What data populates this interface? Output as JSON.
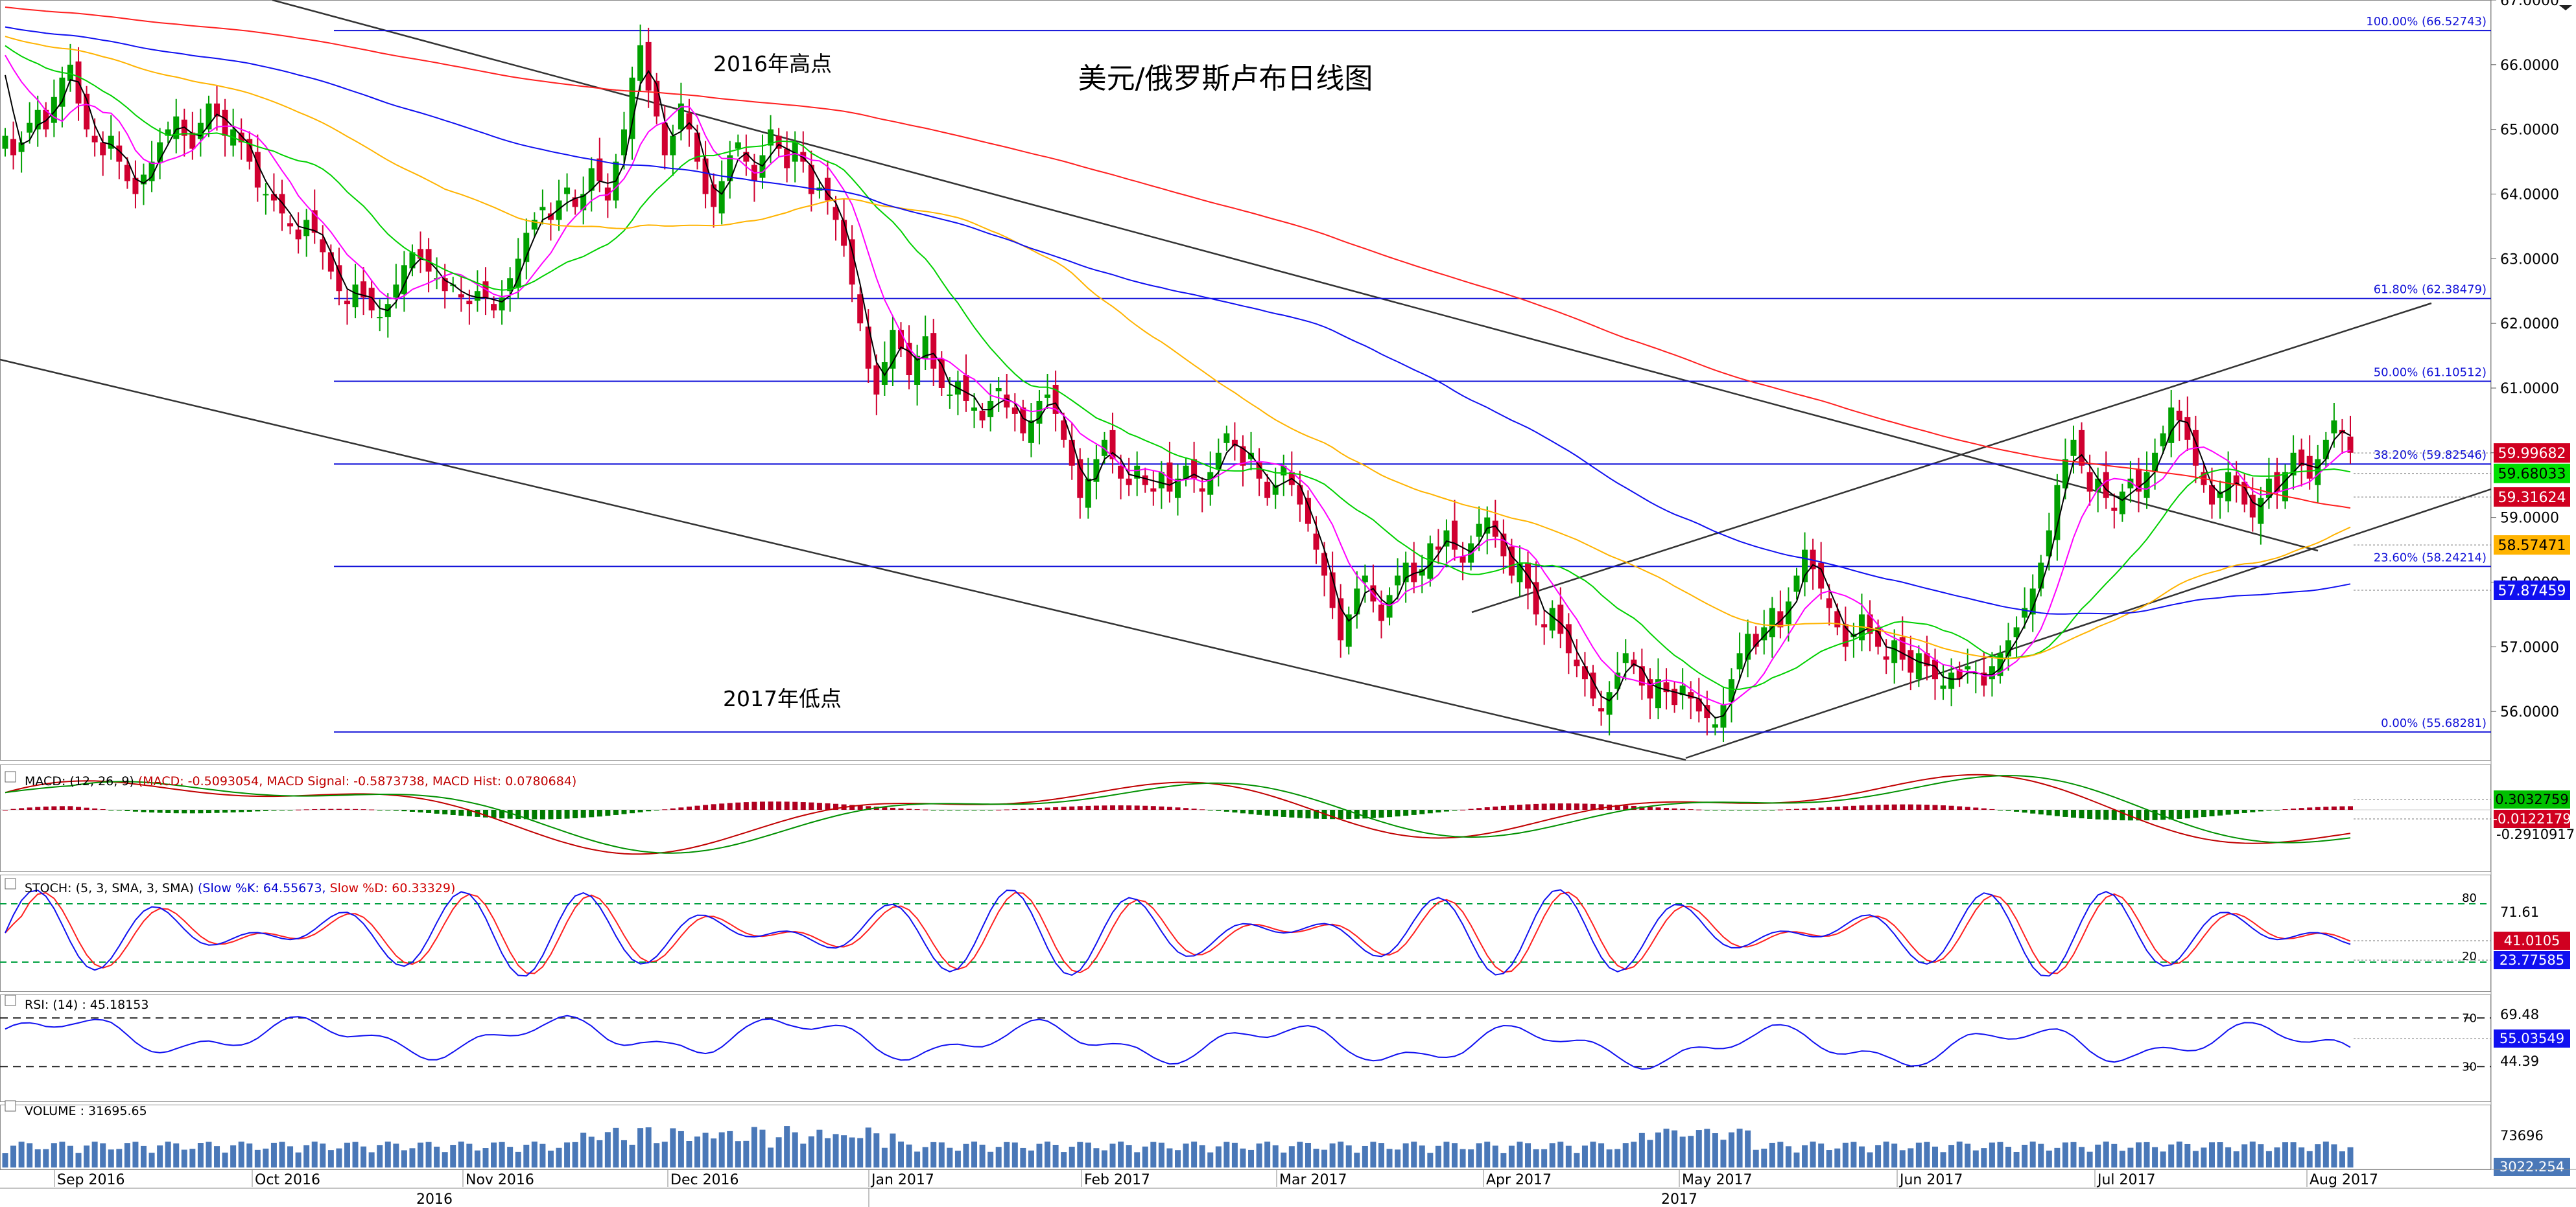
{
  "chart_data": {
    "type": "candlestick",
    "title": "美元/俄罗斯卢布日线图",
    "annotations": {
      "high_2016": "2016年高点",
      "low_2017": "2017年低点"
    },
    "price_axis": {
      "range": [
        55.2,
        67.0
      ],
      "ticks": [
        "67.0000",
        "66.0000",
        "65.0000",
        "64.0000",
        "63.0000",
        "62.0000",
        "61.0000",
        "60.0000",
        "59.0000",
        "58.0000",
        "57.0000",
        "56.0000"
      ]
    },
    "price_labels": [
      {
        "text": "59.99682",
        "color": "#d00020",
        "text_color": "#ffffff",
        "value": 59.99682
      },
      {
        "text": "59.68033",
        "color": "#00e000",
        "text_color": "#000000",
        "value": 59.68033
      },
      {
        "text": "59.31624",
        "color": "#d00020",
        "text_color": "#ffffff",
        "value": 59.31624
      },
      {
        "text": "58.57471",
        "color": "#ffb300",
        "text_color": "#000000",
        "value": 58.57471
      },
      {
        "text": "57.87459",
        "color": "#1010f0",
        "text_color": "#ffffff",
        "value": 57.87459
      }
    ],
    "fibonacci": [
      {
        "label": "100.00% (66.52743)",
        "value": 66.52743
      },
      {
        "label": "61.80% (62.38479)",
        "value": 62.38479
      },
      {
        "label": "50.00% (61.10512)",
        "value": 61.10512
      },
      {
        "label": "38.20% (59.82546)",
        "value": 59.82546
      },
      {
        "label": "23.60% (58.24214)",
        "value": 58.24214
      },
      {
        "label": "0.00% (55.68281)",
        "value": 55.68281
      }
    ],
    "months": [
      "Sep 2016",
      "Oct 2016",
      "Nov 2016",
      "Dec 2016",
      "Jan 2017",
      "Feb 2017",
      "Mar 2017",
      "Apr 2017",
      "May 2017",
      "Jun 2017",
      "Jul 2017",
      "Aug 2017"
    ],
    "years": [
      "2016",
      "2017"
    ],
    "closes": [
      64.9,
      64.6,
      64.8,
      65.1,
      65.3,
      65.0,
      65.5,
      65.8,
      66.0,
      65.4,
      65.0,
      64.8,
      64.6,
      64.9,
      64.5,
      64.2,
      64.0,
      64.3,
      64.5,
      64.8,
      65.0,
      65.2,
      64.9,
      64.7,
      65.1,
      65.4,
      65.2,
      64.9,
      65.0,
      64.8,
      64.5,
      64.1,
      64.0,
      63.9,
      63.7,
      63.5,
      63.3,
      63.6,
      63.4,
      63.1,
      62.8,
      62.5,
      62.3,
      62.6,
      62.4,
      62.2,
      62.1,
      62.3,
      62.6,
      62.9,
      63.1,
      63.0,
      62.8,
      62.7,
      62.5,
      62.6,
      62.4,
      62.3,
      62.5,
      62.4,
      62.2,
      62.4,
      62.7,
      63.0,
      63.4,
      63.6,
      63.8,
      63.6,
      63.9,
      64.1,
      63.8,
      64.0,
      64.4,
      64.2,
      63.9,
      64.5,
      65.0,
      65.8,
      66.3,
      65.6,
      65.2,
      64.6,
      64.9,
      65.4,
      65.0,
      64.5,
      64.0,
      63.8,
      64.2,
      64.6,
      64.8,
      64.5,
      64.2,
      64.6,
      65.0,
      64.7,
      64.4,
      64.8,
      64.5,
      64.0,
      64.1,
      63.9,
      63.6,
      63.2,
      62.6,
      62.0,
      61.3,
      60.9,
      61.4,
      61.9,
      61.6,
      61.2,
      61.5,
      61.8,
      61.3,
      61.0,
      60.9,
      61.1,
      60.8,
      60.7,
      60.5,
      60.8,
      61.0,
      60.7,
      60.6,
      60.3,
      60.5,
      60.8,
      60.9,
      60.6,
      60.2,
      59.8,
      59.3,
      59.6,
      59.9,
      60.2,
      59.9,
      59.6,
      59.5,
      59.8,
      59.5,
      59.4,
      59.7,
      59.4,
      59.6,
      59.8,
      59.6,
      59.4,
      59.7,
      60.0,
      60.3,
      60.1,
      59.8,
      60.0,
      59.6,
      59.3,
      59.5,
      59.8,
      59.5,
      59.2,
      58.9,
      58.5,
      58.1,
      57.6,
      57.1,
      57.5,
      57.9,
      58.1,
      57.7,
      57.4,
      57.8,
      58.1,
      58.3,
      58.0,
      58.2,
      58.6,
      58.5,
      58.8,
      58.5,
      58.3,
      58.6,
      58.9,
      59.0,
      58.7,
      58.4,
      58.1,
      58.3,
      57.9,
      57.5,
      57.3,
      57.6,
      57.2,
      56.9,
      56.7,
      56.5,
      56.2,
      56.0,
      56.3,
      56.6,
      56.9,
      56.7,
      56.4,
      56.2,
      56.5,
      56.3,
      56.1,
      56.4,
      56.2,
      56.0,
      55.9,
      55.8,
      56.1,
      56.5,
      56.9,
      57.2,
      57.0,
      57.3,
      57.6,
      57.3,
      57.7,
      58.1,
      58.5,
      58.2,
      57.9,
      57.6,
      57.3,
      57.0,
      57.2,
      57.5,
      57.2,
      57.0,
      56.8,
      57.1,
      56.8,
      56.6,
      56.9,
      56.7,
      56.5,
      56.4,
      56.6,
      56.5,
      56.7,
      56.6,
      56.4,
      56.7,
      56.9,
      57.1,
      57.3,
      57.6,
      57.9,
      58.3,
      58.8,
      59.5,
      59.9,
      60.2,
      59.8,
      59.4,
      59.6,
      59.3,
      59.1,
      59.4,
      59.6,
      59.4,
      59.7,
      60.0,
      60.3,
      60.7,
      60.5,
      60.2,
      59.8,
      59.5,
      59.2,
      59.4,
      59.7,
      59.5,
      59.2,
      59.0,
      59.3,
      59.6,
      59.4,
      59.7,
      60.0,
      59.8,
      59.6,
      59.9,
      60.2,
      60.5,
      60.3,
      60.0
    ],
    "indicators": {
      "macd": {
        "header": "MACD: (12, 26, 9) ",
        "values": "(MACD: -0.5093054, MACD Signal: -0.5873738, MACD Hist: 0.0780684)",
        "axis": [
          "0.3032759",
          "-0.0122179",
          "-0.2910917"
        ]
      },
      "stoch": {
        "header": "STOCH: (5, 3, SMA, 3, SMA) ",
        "k": "(Slow %K: 64.55673, ",
        "d": "Slow %D: 60.33329)",
        "levels": [
          "80",
          "20"
        ],
        "axis": [
          "71.61"
        ],
        "labels": [
          "41.0105",
          "23.77585"
        ]
      },
      "rsi": {
        "header": "RSI: (14) : 45.18153",
        "levels": [
          "70",
          "30"
        ],
        "axis": [
          "69.48",
          "44.39"
        ],
        "label": "55.03549"
      },
      "volume": {
        "header": "VOLUME : 31695.65",
        "axis": [
          "73696"
        ],
        "label": "3022.254"
      }
    }
  }
}
